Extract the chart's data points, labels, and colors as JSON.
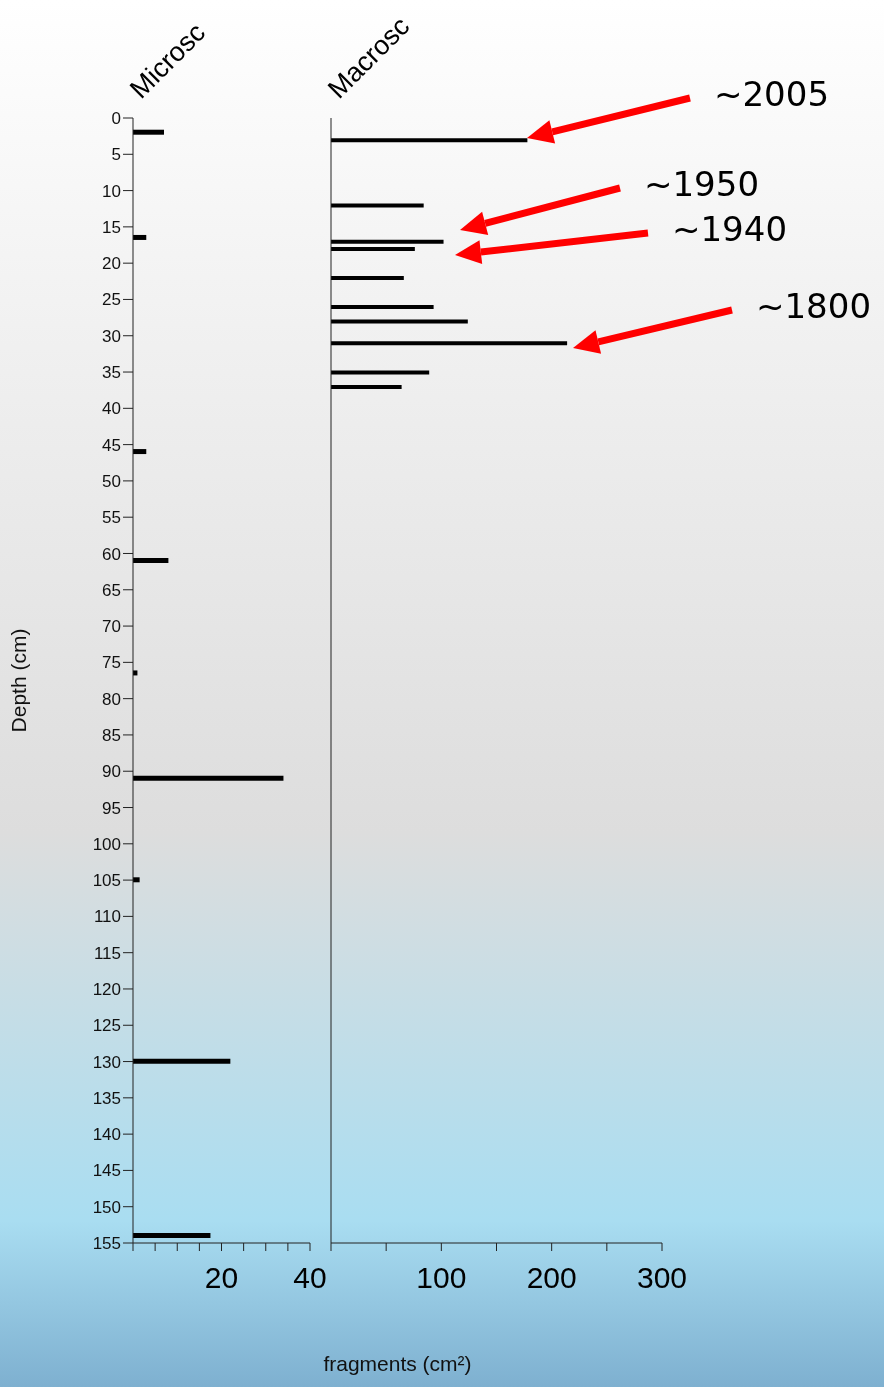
{
  "chart_data": [
    {
      "type": "bar",
      "orientation": "horizontal",
      "title": "Microsc",
      "ylabel": "Depth (cm)",
      "xlabel": "fragments (cm²)",
      "color": "#000000",
      "x": [
        2,
        16.5,
        46,
        61,
        76.5,
        91,
        105,
        130,
        154
      ],
      "values": [
        7,
        3,
        3,
        8,
        1,
        34,
        1.5,
        22,
        17.5
      ],
      "xlim": [
        0,
        40
      ],
      "xticks": [
        {
          "value": 0,
          "label": null
        },
        {
          "value": 5,
          "label": null
        },
        {
          "value": 10,
          "label": null
        },
        {
          "value": 15,
          "label": null
        },
        20,
        {
          "value": 25,
          "label": null
        },
        {
          "value": 30,
          "label": null
        },
        {
          "value": 35,
          "label": null
        },
        40
      ],
      "ylim": [
        155,
        0
      ],
      "yticks": [
        0,
        5,
        10,
        15,
        20,
        25,
        30,
        35,
        40,
        45,
        50,
        55,
        60,
        65,
        70,
        75,
        80,
        85,
        90,
        95,
        100,
        105,
        110,
        115,
        120,
        125,
        130,
        135,
        140,
        145,
        150,
        155
      ]
    },
    {
      "type": "bar",
      "orientation": "horizontal",
      "title": "Macrosc",
      "color": "#000000",
      "tick_labels": "x",
      "x": [
        3,
        12,
        17,
        18,
        22,
        26,
        28,
        31,
        35,
        37
      ],
      "values": [
        178,
        84,
        102,
        76,
        66,
        93,
        124,
        214,
        89,
        64
      ],
      "xlim": [
        0,
        300
      ],
      "xticks": [
        {
          "value": 0,
          "label": null
        },
        {
          "value": 50,
          "label": null
        },
        100,
        {
          "value": 150,
          "label": null
        },
        200,
        {
          "value": 250,
          "label": null
        },
        300
      ],
      "ylim": [
        155,
        0
      ],
      "annotations": [
        "~2005",
        "~1950",
        "~1940",
        "~1800"
      ]
    }
  ]
}
